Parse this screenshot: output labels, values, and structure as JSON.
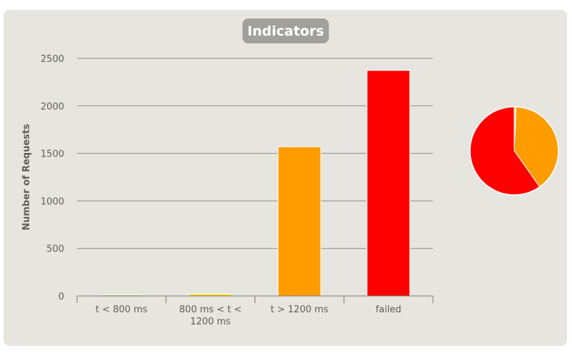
{
  "chart_data": {
    "type": "bar",
    "title": "Indicators",
    "ylabel": "Number of Requests",
    "xlabel": "",
    "ylim": [
      0,
      2500
    ],
    "yticks": [
      0,
      500,
      1000,
      1500,
      2000,
      2500
    ],
    "grid": true,
    "categories": [
      [
        "t < 800 ms"
      ],
      [
        "800 ms < t <",
        "1200 ms"
      ],
      [
        "t > 1200 ms"
      ],
      [
        "failed"
      ]
    ],
    "values": [
      8,
      20,
      1570,
      2373
    ],
    "colors": [
      "#a3d641",
      "#ffd000",
      "#ff9d00",
      "#ff0000"
    ],
    "pie": {
      "values": [
        8,
        20,
        1570,
        2373
      ],
      "colors": [
        "#a3d641",
        "#ffd000",
        "#ff9d00",
        "#ff0000"
      ]
    }
  },
  "colors": {
    "panel": "#e7e5e0",
    "title_bg": "#a2a09c",
    "grid": "#8f8d89",
    "text": "#5f5d59"
  }
}
